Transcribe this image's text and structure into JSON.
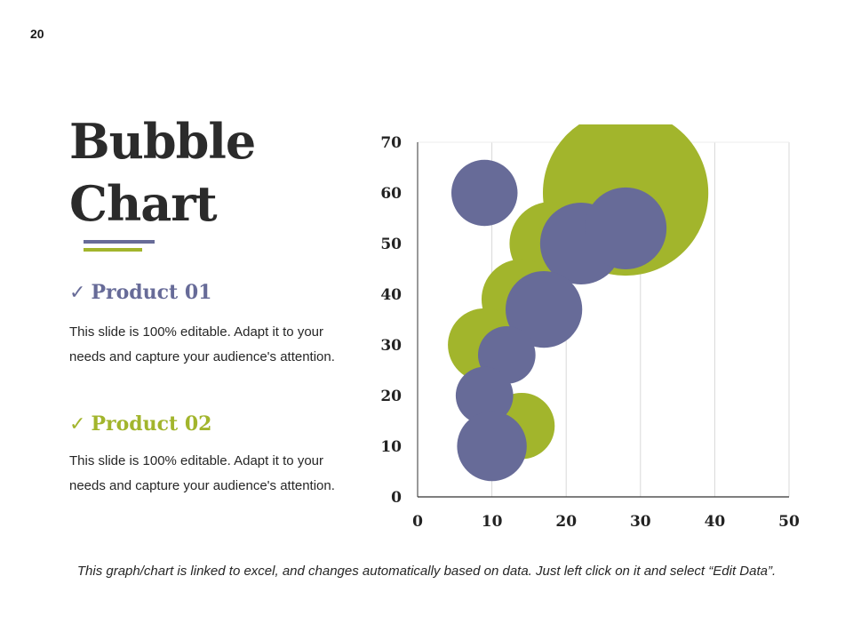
{
  "page": {
    "number": "20"
  },
  "title": {
    "line1": "Bubble",
    "line2": "Chart"
  },
  "colors": {
    "product01": "#676b98",
    "product02": "#a2b52c",
    "grid": "#d9d9d9",
    "axis": "#333333"
  },
  "products": [
    {
      "check": "✓",
      "heading": "Product 01",
      "description": "This slide is 100% editable. Adapt it to your needs and capture your audience's attention."
    },
    {
      "check": "✓",
      "heading": "Product 02",
      "description": "This slide is 100% editable. Adapt it to your needs and capture your audience's attention."
    }
  ],
  "footnote": "This graph/chart is linked to excel, and changes automatically based on data. Just left click on it and select “Edit Data”.",
  "chart_data": {
    "type": "bubble",
    "title": "",
    "xlabel": "",
    "ylabel": "",
    "xlim": [
      0,
      50
    ],
    "ylim": [
      0,
      70
    ],
    "xticks": [
      0,
      10,
      20,
      30,
      40,
      50
    ],
    "yticks": [
      0,
      10,
      20,
      30,
      40,
      50,
      60,
      70
    ],
    "grid": "vertical",
    "series": [
      {
        "name": "Product 02",
        "points": [
          {
            "x": 28,
            "y": 60,
            "size": 9.5
          },
          {
            "x": 18,
            "y": 50,
            "size": 4.8
          },
          {
            "x": 14,
            "y": 39,
            "size": 4.6
          },
          {
            "x": 9,
            "y": 30,
            "size": 4.2
          },
          {
            "x": 14,
            "y": 14,
            "size": 3.8
          }
        ]
      },
      {
        "name": "Product 01",
        "points": [
          {
            "x": 9,
            "y": 60,
            "size": 3.8
          },
          {
            "x": 22,
            "y": 50,
            "size": 4.7
          },
          {
            "x": 28,
            "y": 53,
            "size": 4.7
          },
          {
            "x": 17,
            "y": 37,
            "size": 4.4
          },
          {
            "x": 12,
            "y": 28,
            "size": 3.3
          },
          {
            "x": 9,
            "y": 20,
            "size": 3.3
          },
          {
            "x": 10,
            "y": 10,
            "size": 4.0
          }
        ]
      }
    ]
  }
}
